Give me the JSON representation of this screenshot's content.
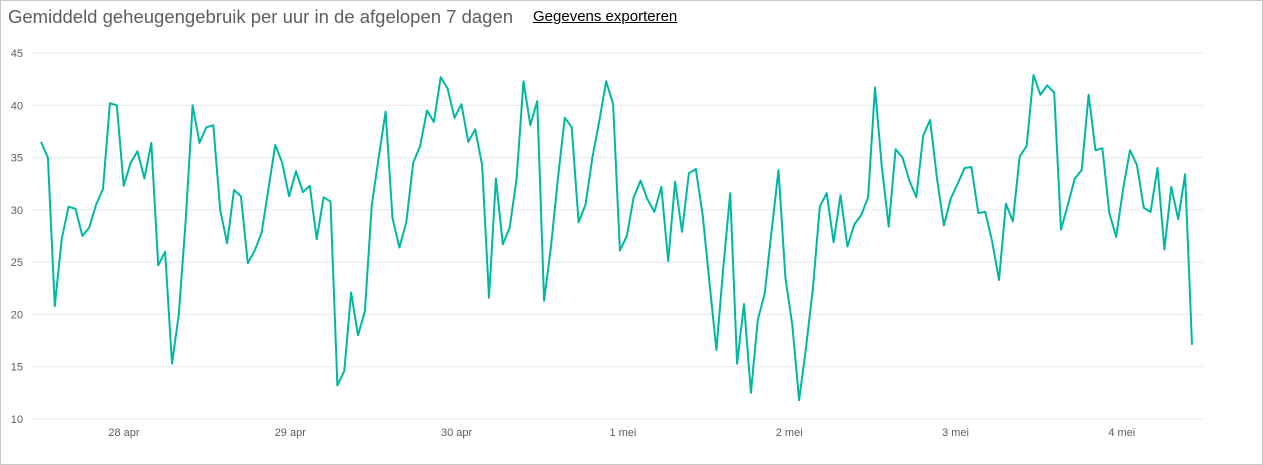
{
  "header": {
    "title": "Gemiddeld geheugengebruik per uur in de afgelopen 7 dagen",
    "export_label": "Gegevens exporteren"
  },
  "colors": {
    "series": "#00b7a3",
    "grid": "#e8e8e8",
    "text": "#605e5c"
  },
  "chart_data": {
    "type": "line",
    "title": "Gemiddeld geheugengebruik per uur in de afgelopen 7 dagen",
    "xlabel": "",
    "ylabel": "",
    "ylim": [
      10,
      45
    ],
    "yticks": [
      10,
      15,
      20,
      25,
      30,
      35,
      40,
      45
    ],
    "xticks": [
      "28 apr",
      "29 apr",
      "30 apr",
      "1 mei",
      "2 mei",
      "3 mei",
      "4 mei"
    ],
    "grid": true,
    "legend": "none",
    "series": [
      {
        "values": [
          36.5,
          35.0,
          20.8,
          27.2,
          30.3,
          30.1,
          27.5,
          28.3,
          30.5,
          32.0,
          40.2,
          40.0,
          32.3,
          34.5,
          35.6,
          33.0,
          36.4,
          24.7,
          26.0,
          15.3,
          20.0,
          29.0,
          40.0,
          36.4,
          37.9,
          38.1,
          30.0,
          26.8,
          31.9,
          31.3,
          24.9,
          26.1,
          27.8,
          32.0,
          36.2,
          34.5,
          31.3,
          33.7,
          31.7,
          32.3,
          27.2,
          31.2,
          30.8,
          13.2,
          14.6,
          22.1,
          18.0,
          20.3,
          30.5,
          35.0,
          39.4,
          29.2,
          26.4,
          28.8,
          34.5,
          36.1,
          39.5,
          38.4,
          42.7,
          41.6,
          38.8,
          40.1,
          36.5,
          37.7,
          34.3,
          21.6,
          33.0,
          26.7,
          28.3,
          33.0,
          42.3,
          38.1,
          40.4,
          21.3,
          26.5,
          33.0,
          38.8,
          37.9,
          28.8,
          30.5,
          35.0,
          38.5,
          42.3,
          40.1,
          26.1,
          27.5,
          31.2,
          32.8,
          31.0,
          29.8,
          32.2,
          25.1,
          32.7,
          27.9,
          33.5,
          33.9,
          29.5,
          23.0,
          16.6,
          24.5,
          31.6,
          15.3,
          21.0,
          12.5,
          19.5,
          22.0,
          28.0,
          33.8,
          23.5,
          19.0,
          11.8,
          16.8,
          22.5,
          30.3,
          31.6,
          26.9,
          31.4,
          26.5,
          28.6,
          29.5,
          31.2,
          41.7,
          34.0,
          28.4,
          35.8,
          35.0,
          32.8,
          31.2,
          37.1,
          38.6,
          33.0,
          28.5,
          31.1,
          32.5,
          34.0,
          34.1,
          29.7,
          29.8,
          27.0,
          23.3,
          30.6,
          28.9,
          35.1,
          36.1,
          42.9,
          41.0,
          41.9,
          41.2,
          28.1,
          30.5,
          33.0,
          33.8,
          41.0,
          35.7,
          35.9,
          29.7,
          27.4,
          32.0,
          35.7,
          34.3,
          30.2,
          29.8,
          34.0,
          26.2,
          32.2,
          29.1,
          33.4,
          17.1
        ]
      }
    ]
  }
}
